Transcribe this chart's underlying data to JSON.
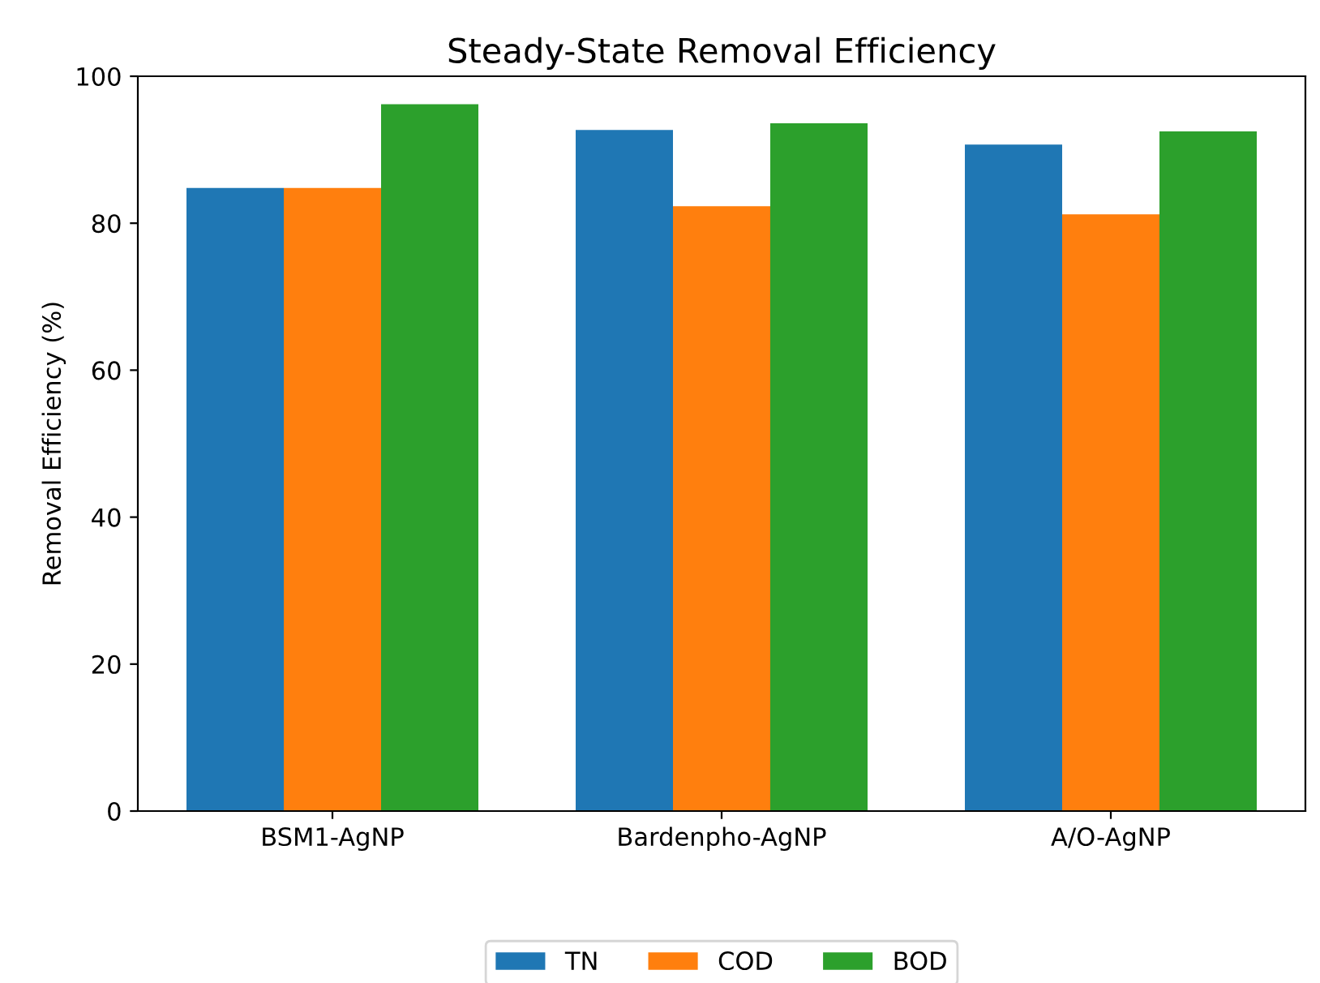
{
  "chart_data": {
    "type": "bar",
    "title": "Steady-State Removal Efficiency",
    "ylabel": "Removal Efficiency (%)",
    "categories": [
      "BSM1-AgNP",
      "Bardenpho-AgNP",
      "A/O-AgNP"
    ],
    "series": [
      {
        "name": "TN",
        "color": "#1f77b4",
        "values": [
          84.8,
          92.7,
          90.7
        ]
      },
      {
        "name": "COD",
        "color": "#ff7f0e",
        "values": [
          84.8,
          82.3,
          81.2
        ]
      },
      {
        "name": "BOD",
        "color": "#2ca02c",
        "values": [
          96.2,
          93.6,
          92.5
        ]
      }
    ],
    "ylim": [
      0,
      100
    ],
    "yticks": [
      0,
      20,
      40,
      60,
      80,
      100
    ],
    "grid": false,
    "legend": "bottom"
  }
}
